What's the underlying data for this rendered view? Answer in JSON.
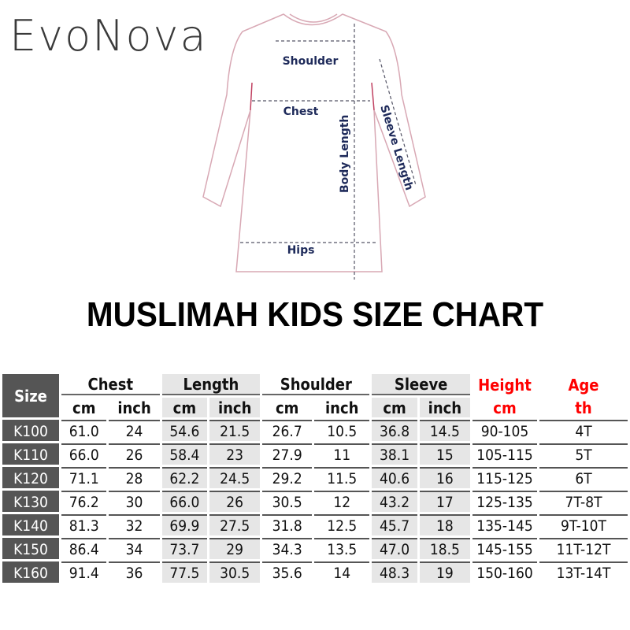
{
  "logo": "EvoNova",
  "diagram": {
    "shoulder": "Shoulder",
    "chest": "Chest",
    "body_length": "Body Length",
    "sleeve_length": "Sleeve Length",
    "hips": "Hips"
  },
  "title": "MUSLIMAH KIDS SIZE CHART",
  "table": {
    "size_header": "Size",
    "groups": [
      "Chest",
      "Length",
      "Shoulder",
      "Sleeve"
    ],
    "height_header": "Height",
    "height_unit": "cm",
    "age_header": "Age",
    "age_unit": "th",
    "units": [
      "cm",
      "inch",
      "cm",
      "inch",
      "cm",
      "inch",
      "cm",
      "inch"
    ],
    "rows": [
      [
        "K100",
        "61.0",
        "24",
        "54.6",
        "21.5",
        "26.7",
        "10.5",
        "36.8",
        "14.5",
        "90-105",
        "4T"
      ],
      [
        "K110",
        "66.0",
        "26",
        "58.4",
        "23",
        "27.9",
        "11",
        "38.1",
        "15",
        "105-115",
        "5T"
      ],
      [
        "K120",
        "71.1",
        "28",
        "62.2",
        "24.5",
        "29.2",
        "11.5",
        "40.6",
        "16",
        "115-125",
        "6T"
      ],
      [
        "K130",
        "76.2",
        "30",
        "66.0",
        "26",
        "30.5",
        "12",
        "43.2",
        "17",
        "125-135",
        "7T-8T"
      ],
      [
        "K140",
        "81.3",
        "32",
        "69.9",
        "27.5",
        "31.8",
        "12.5",
        "45.7",
        "18",
        "135-145",
        "9T-10T"
      ],
      [
        "K150",
        "86.4",
        "34",
        "73.7",
        "29",
        "34.3",
        "13.5",
        "47.0",
        "18.5",
        "145-155",
        "11T-12T"
      ],
      [
        "K160",
        "91.4",
        "36",
        "77.5",
        "30.5",
        "35.6",
        "14",
        "48.3",
        "19",
        "150-160",
        "13T-14T"
      ]
    ]
  }
}
